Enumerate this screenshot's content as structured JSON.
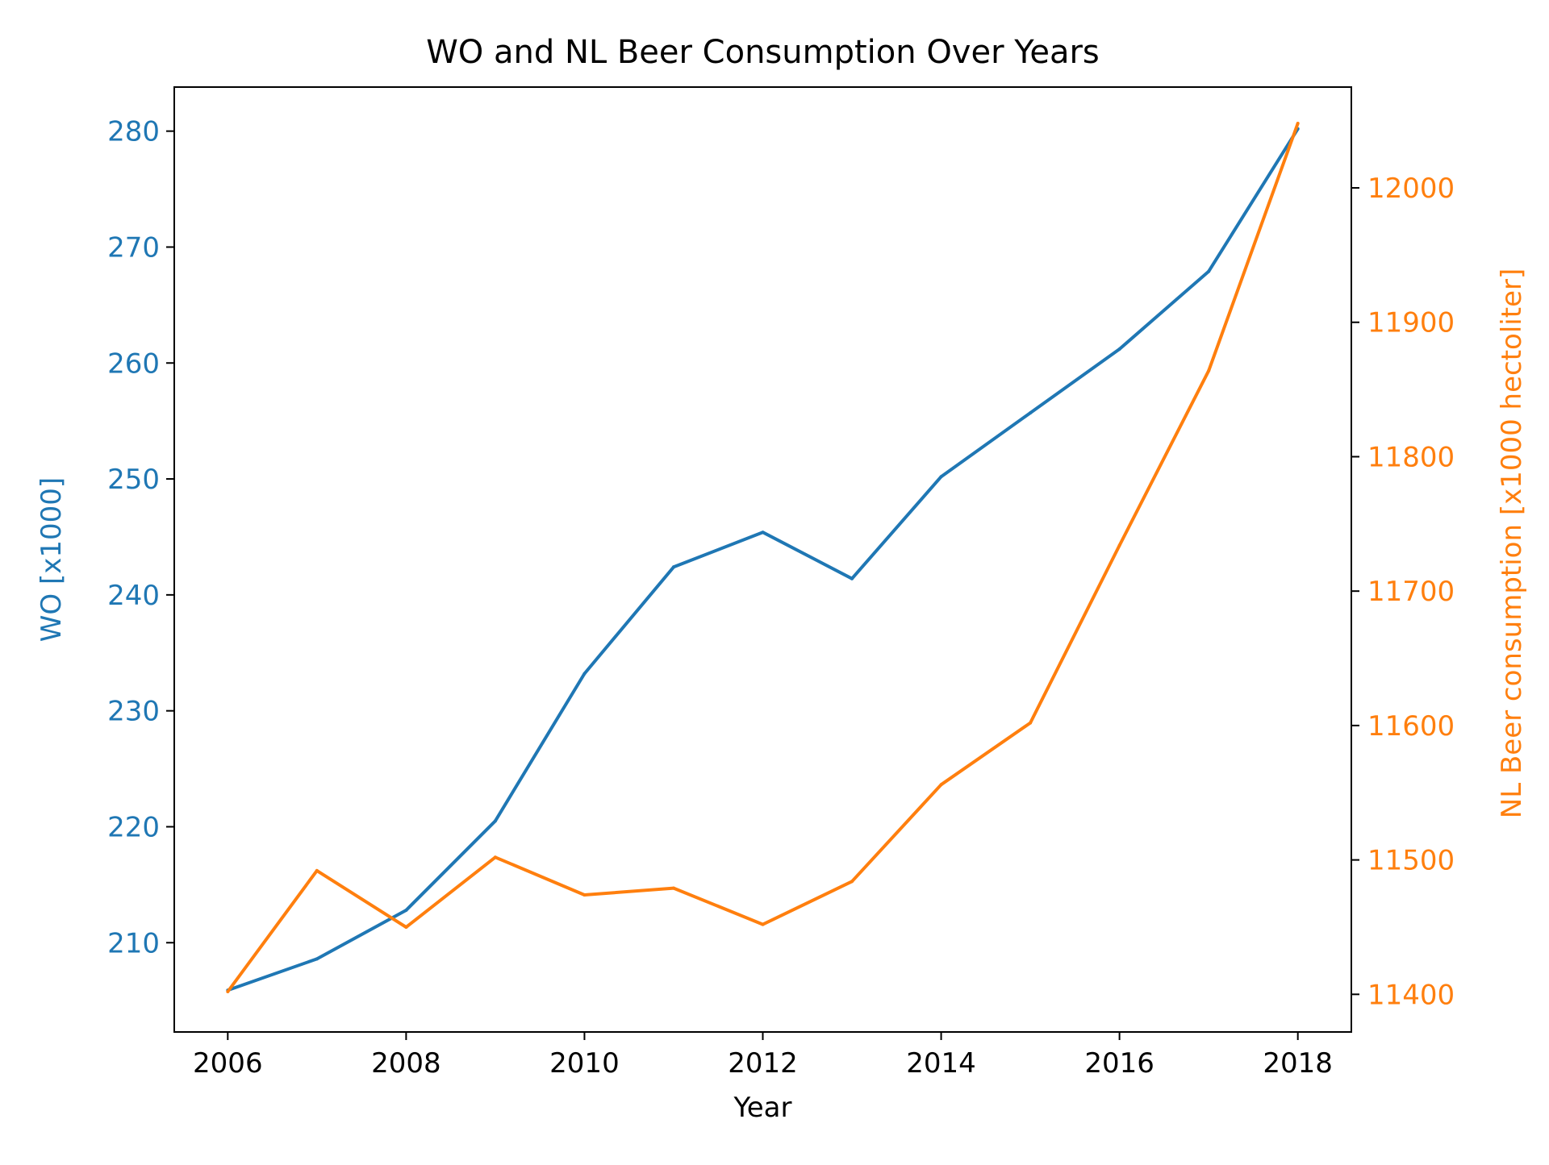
{
  "chart_data": {
    "type": "line",
    "title": "WO and NL Beer Consumption Over Years",
    "xlabel": "Year",
    "x": [
      2006,
      2007,
      2008,
      2009,
      2010,
      2011,
      2012,
      2013,
      2014,
      2015,
      2016,
      2017,
      2018
    ],
    "xticks": [
      "2006",
      "2008",
      "2010",
      "2012",
      "2014",
      "2016",
      "2018"
    ],
    "xlim": [
      2005.4,
      2018.6
    ],
    "left_axis": {
      "label": "WO [x1000]",
      "color": "#1f77b4",
      "ylim": [
        202.3,
        283.8
      ],
      "ticks": [
        "210",
        "220",
        "230",
        "240",
        "250",
        "260",
        "270",
        "280"
      ]
    },
    "right_axis": {
      "label": "NL Beer consumption [x1000 hectoliter]",
      "color": "#ff7f0e",
      "ylim": [
        11372,
        12075
      ],
      "ticks": [
        "11400",
        "11500",
        "11600",
        "11700",
        "11800",
        "11900",
        "12000"
      ]
    },
    "series": [
      {
        "name": "WO",
        "axis": "left",
        "color": "#1f77b4",
        "values": [
          205.9,
          208.6,
          212.8,
          220.5,
          233.2,
          242.4,
          245.4,
          241.4,
          250.2,
          255.7,
          261.2,
          267.9,
          280.2
        ]
      },
      {
        "name": "NL Beer consumption",
        "axis": "right",
        "color": "#ff7f0e",
        "values": [
          11402,
          11492,
          11450,
          11502,
          11474,
          11479,
          11452,
          11484,
          11556,
          11602,
          11734,
          11864,
          12048
        ]
      }
    ],
    "grid": false,
    "legend": "none"
  }
}
